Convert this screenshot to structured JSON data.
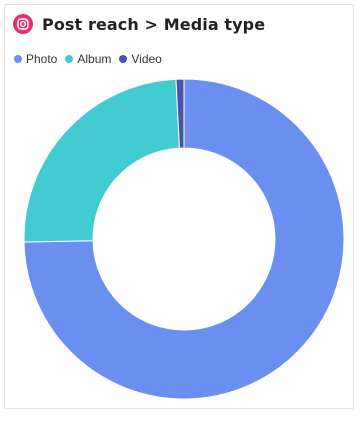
{
  "header": {
    "title": "Post reach > Media type",
    "icon": "instagram-icon",
    "icon_color": "#e1306c"
  },
  "chart_data": {
    "type": "pie",
    "title": "Post reach > Media type",
    "donut": true,
    "legend_position": "top-left",
    "series": [
      {
        "name": "Photo",
        "value": 74.7,
        "color": "#6a8ff0"
      },
      {
        "name": "Album",
        "value": 24.5,
        "color": "#43cbd2"
      },
      {
        "name": "Video",
        "value": 0.8,
        "color": "#4b52a8"
      }
    ]
  }
}
